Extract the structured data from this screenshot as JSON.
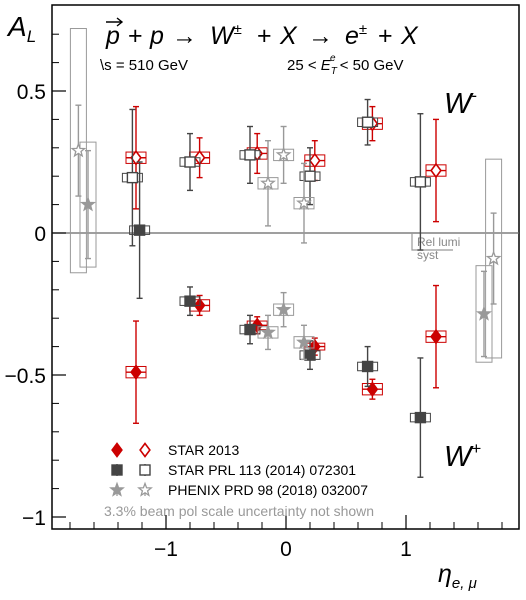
{
  "chart_data": {
    "type": "scatter",
    "ylabel": "A_L",
    "xlabel": "η_{e, μ}",
    "xlim": [
      -1.95,
      1.95
    ],
    "ylim": [
      -1.03,
      0.8
    ],
    "grid": false,
    "y_ticks": [
      {
        "v": 0.5,
        "t": "0.5"
      },
      {
        "v": 0,
        "t": "0"
      },
      {
        "v": -0.5,
        "t": "−0.5"
      },
      {
        "v": -1,
        "t": "−1"
      }
    ],
    "x_ticks": [
      {
        "v": -1,
        "t": "−1"
      },
      {
        "v": 0,
        "t": "0"
      },
      {
        "v": 1,
        "t": "1"
      }
    ],
    "title_reaction": "p + p → W± + X → e± + X",
    "energy_label": "\\s = 510 GeV",
    "et_cut": "25 < E_T^e < 50 GeV",
    "label_wminus": "W",
    "label_wplus": "W",
    "rel_lumi": [
      "Rel lumi",
      "syst"
    ],
    "footnote": "3.3% beam pol scale uncertainty not shown",
    "legend": [
      {
        "text": "STAR 2013",
        "color": "#cc0000",
        "closed": "diamond",
        "open": "diamond"
      },
      {
        "text": "STAR PRL 113 (2014) 072301",
        "color": "#444444",
        "closed": "square",
        "open": "square"
      },
      {
        "text": "PHENIX PRD 98 (2018) 032007",
        "color": "#999999",
        "closed": "star",
        "open": "star"
      }
    ],
    "series": [
      {
        "name": "STAR 2013",
        "charge": "W+",
        "color": "#cc0000",
        "marker": "diamond",
        "filled": true,
        "points": [
          {
            "x": -1.25,
            "y": -0.49,
            "err": 0.18,
            "sys": 0.02
          },
          {
            "x": -0.72,
            "y": -0.255,
            "err": 0.035,
            "sys": 0.02
          },
          {
            "x": -0.24,
            "y": -0.325,
            "err": 0.03,
            "sys": 0.015
          },
          {
            "x": 0.24,
            "y": -0.4,
            "err": 0.03,
            "sys": 0.012
          },
          {
            "x": 0.72,
            "y": -0.55,
            "err": 0.035,
            "sys": 0.02
          },
          {
            "x": 1.25,
            "y": -0.365,
            "err": 0.18,
            "sys": 0.02
          }
        ]
      },
      {
        "name": "STAR 2013",
        "charge": "W-",
        "color": "#cc0000",
        "marker": "diamond",
        "filled": false,
        "points": [
          {
            "x": -1.25,
            "y": 0.265,
            "err": 0.18,
            "sys": 0.02
          },
          {
            "x": -0.72,
            "y": 0.265,
            "err": 0.07,
            "sys": 0.02
          },
          {
            "x": -0.24,
            "y": 0.28,
            "err": 0.07,
            "sys": 0.02
          },
          {
            "x": 0.24,
            "y": 0.255,
            "err": 0.07,
            "sys": 0.02
          },
          {
            "x": 0.72,
            "y": 0.385,
            "err": 0.06,
            "sys": 0.02
          },
          {
            "x": 1.25,
            "y": 0.22,
            "err": 0.18,
            "sys": 0.02
          }
        ]
      },
      {
        "name": "STAR PRL 113 (2014) 072301",
        "charge": "W+",
        "color": "#444444",
        "marker": "square",
        "filled": true,
        "points": [
          {
            "x": -1.22,
            "y": 0.01,
            "err": 0.24,
            "sys": 0.015
          },
          {
            "x": -0.8,
            "y": -0.24,
            "err": 0.05,
            "sys": 0.015
          },
          {
            "x": -0.3,
            "y": -0.34,
            "err": 0.05,
            "sys": 0.015
          },
          {
            "x": 0.2,
            "y": -0.43,
            "err": 0.05,
            "sys": 0.015
          },
          {
            "x": 0.68,
            "y": -0.47,
            "err": 0.07,
            "sys": 0.015
          },
          {
            "x": 1.12,
            "y": -0.65,
            "err": 0.21,
            "sys": 0.015
          }
        ]
      },
      {
        "name": "STAR PRL 113 (2014) 072301",
        "charge": "W-",
        "color": "#444444",
        "marker": "square",
        "filled": false,
        "points": [
          {
            "x": -1.28,
            "y": 0.195,
            "err": 0.24,
            "sys": 0.015
          },
          {
            "x": -0.8,
            "y": 0.25,
            "err": 0.1,
            "sys": 0.015
          },
          {
            "x": -0.3,
            "y": 0.275,
            "err": 0.1,
            "sys": 0.015
          },
          {
            "x": 0.2,
            "y": 0.2,
            "err": 0.1,
            "sys": 0.015
          },
          {
            "x": 0.68,
            "y": 0.39,
            "err": 0.08,
            "sys": 0.015
          },
          {
            "x": 1.12,
            "y": 0.18,
            "err": 0.24,
            "sys": 0.015
          }
        ]
      },
      {
        "name": "PHENIX PRD 98 (2018) 032007",
        "charge": "W+",
        "color": "#999999",
        "marker": "star",
        "filled": true,
        "points": [
          {
            "x": -1.65,
            "y": 0.1,
            "err": 0.19,
            "sys": 0.22
          },
          {
            "x": -0.15,
            "y": -0.35,
            "err": 0.06,
            "sys": 0.02
          },
          {
            "x": -0.02,
            "y": -0.27,
            "err": 0.06,
            "sys": 0.02
          },
          {
            "x": 0.15,
            "y": -0.385,
            "err": 0.06,
            "sys": 0.02
          },
          {
            "x": 1.65,
            "y": -0.285,
            "err": 0.15,
            "sys": 0.17
          }
        ]
      },
      {
        "name": "PHENIX PRD 98 (2018) 032007",
        "charge": "W-",
        "color": "#999999",
        "marker": "star",
        "filled": false,
        "points": [
          {
            "x": -1.73,
            "y": 0.29,
            "err": 0.16,
            "sys": 0.43
          },
          {
            "x": -0.15,
            "y": 0.175,
            "err": 0.15,
            "sys": 0.02
          },
          {
            "x": -0.02,
            "y": 0.275,
            "err": 0.1,
            "sys": 0.02
          },
          {
            "x": 0.15,
            "y": 0.105,
            "err": 0.14,
            "sys": 0.02
          },
          {
            "x": 1.73,
            "y": -0.09,
            "err": 0.16,
            "sys": 0.35
          }
        ]
      }
    ]
  }
}
